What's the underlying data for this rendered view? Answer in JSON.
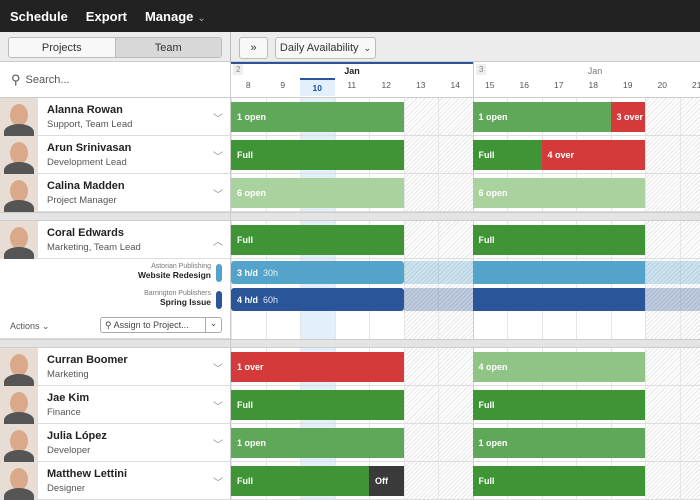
{
  "topnav": {
    "schedule": "Schedule",
    "export": "Export",
    "manage": "Manage"
  },
  "toolbar": {
    "projects": "Projects",
    "team": "Team",
    "collapse_icon": "double-chevron-down-icon",
    "view": "Daily Availability"
  },
  "search": {
    "placeholder": "Search..."
  },
  "calendar": {
    "weeks": [
      {
        "num": "2",
        "month": "Jan"
      },
      {
        "num": "3",
        "month": "Jan"
      }
    ],
    "days": [
      8,
      9,
      10,
      11,
      12,
      13,
      14,
      15,
      16,
      17,
      18,
      19,
      20,
      21
    ],
    "today": 10,
    "weekends": [
      13,
      14,
      20,
      21
    ]
  },
  "colors": {
    "full": "#3f9436",
    "open": "#5fa85a",
    "open_light": "#a9d29e",
    "open_mid": "#8fc486",
    "over": "#d43a3a",
    "off": "#3a3a3a",
    "proj1": "#53a3cb",
    "proj2": "#2a5599"
  },
  "people": [
    {
      "name": "Alanna Rowan",
      "role": "Support, Team Lead",
      "bars": [
        {
          "label": "1 open",
          "from": 8,
          "to": 12,
          "color": "open"
        },
        {
          "label": "1 open",
          "from": 15,
          "to": 18,
          "color": "open"
        },
        {
          "label": "3 over",
          "from": 19,
          "to": 19,
          "color": "over"
        }
      ]
    },
    {
      "name": "Arun Srinivasan",
      "role": "Development Lead",
      "bars": [
        {
          "label": "Full",
          "from": 8,
          "to": 12,
          "color": "full"
        },
        {
          "label": "Full",
          "from": 15,
          "to": 16,
          "color": "full"
        },
        {
          "label": "4 over",
          "from": 17,
          "to": 19,
          "color": "over"
        }
      ]
    },
    {
      "name": "Calina Madden",
      "role": "Project Manager",
      "bars": [
        {
          "label": "6 open",
          "from": 8,
          "to": 12,
          "color": "open_light"
        },
        {
          "label": "6 open",
          "from": 15,
          "to": 19,
          "color": "open_light"
        }
      ]
    },
    {
      "name": "Coral Edwards",
      "role": "Marketing, Team Lead",
      "expanded": true,
      "bars": [
        {
          "label": "Full",
          "from": 8,
          "to": 12,
          "color": "full"
        },
        {
          "label": "Full",
          "from": 15,
          "to": 19,
          "color": "full"
        }
      ],
      "projects": [
        {
          "client": "Astorian Publishing",
          "name": "Website Redesign",
          "rate": "3 h/d",
          "total": "30h",
          "color": "proj1"
        },
        {
          "client": "Barrington Publishers",
          "name": "Spring Issue",
          "rate": "4 h/d",
          "total": "60h",
          "color": "proj2"
        }
      ],
      "actions": "Actions",
      "assign_placeholder": "Assign to Project..."
    },
    {
      "name": "Curran Boomer",
      "role": "Marketing",
      "bars": [
        {
          "label": "1 over",
          "from": 8,
          "to": 12,
          "color": "over"
        },
        {
          "label": "4 open",
          "from": 15,
          "to": 19,
          "color": "open_mid"
        }
      ]
    },
    {
      "name": "Jae Kim",
      "role": "Finance",
      "bars": [
        {
          "label": "Full",
          "from": 8,
          "to": 12,
          "color": "full"
        },
        {
          "label": "Full",
          "from": 15,
          "to": 19,
          "color": "full"
        }
      ]
    },
    {
      "name": "Julia López",
      "role": "Developer",
      "bars": [
        {
          "label": "1 open",
          "from": 8,
          "to": 12,
          "color": "open"
        },
        {
          "label": "1 open",
          "from": 15,
          "to": 19,
          "color": "open"
        }
      ]
    },
    {
      "name": "Matthew Lettini",
      "role": "Designer",
      "bars": [
        {
          "label": "Full",
          "from": 8,
          "to": 11,
          "color": "full"
        },
        {
          "label": "Off",
          "from": 12,
          "to": 12,
          "color": "off"
        },
        {
          "label": "Full",
          "from": 15,
          "to": 19,
          "color": "full"
        }
      ]
    }
  ]
}
